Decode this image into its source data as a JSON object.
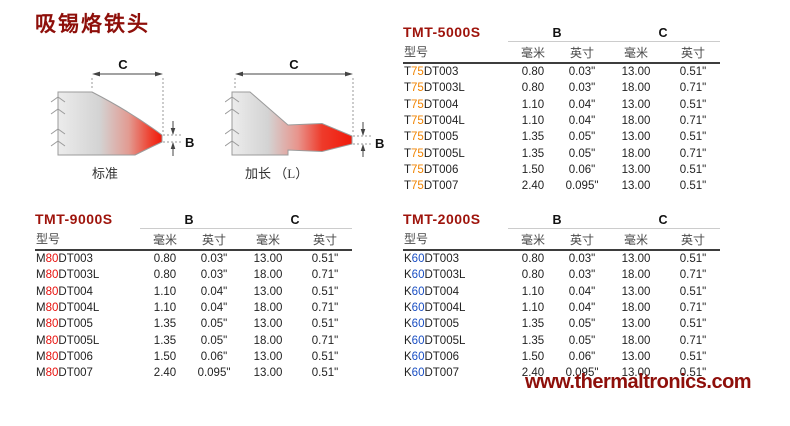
{
  "page": {
    "title": "吸锡烙铁头",
    "website": "www.thermaltronics.com"
  },
  "diagram": {
    "standard_label": "标准",
    "extended_label": "加长 （L）",
    "dim_b": "B",
    "dim_c": "C"
  },
  "table_headers": {
    "model": "型号",
    "mm": "毫米",
    "inch": "英寸",
    "b": "B",
    "c": "C"
  },
  "colors": {
    "heading_red": "#8e0f0a",
    "accent_t75": "#f08300",
    "accent_m80": "#e8100c",
    "accent_k60": "#1a4fc4"
  },
  "tables": [
    {
      "title": "TMT-5000S",
      "accent": "#f08300",
      "rows": [
        {
          "model": "T75DT003",
          "b_mm": "0.80",
          "b_in": "0.03\"",
          "c_mm": "13.00",
          "c_in": "0.51\""
        },
        {
          "model": "T75DT003L",
          "b_mm": "0.80",
          "b_in": "0.03\"",
          "c_mm": "18.00",
          "c_in": "0.71\""
        },
        {
          "model": "T75DT004",
          "b_mm": "1.10",
          "b_in": "0.04\"",
          "c_mm": "13.00",
          "c_in": "0.51\""
        },
        {
          "model": "T75DT004L",
          "b_mm": "1.10",
          "b_in": "0.04\"",
          "c_mm": "18.00",
          "c_in": "0.71\""
        },
        {
          "model": "T75DT005",
          "b_mm": "1.35",
          "b_in": "0.05\"",
          "c_mm": "13.00",
          "c_in": "0.51\""
        },
        {
          "model": "T75DT005L",
          "b_mm": "1.35",
          "b_in": "0.05\"",
          "c_mm": "18.00",
          "c_in": "0.71\""
        },
        {
          "model": "T75DT006",
          "b_mm": "1.50",
          "b_in": "0.06\"",
          "c_mm": "13.00",
          "c_in": "0.51\""
        },
        {
          "model": "T75DT007",
          "b_mm": "2.40",
          "b_in": "0.095\"",
          "c_mm": "13.00",
          "c_in": "0.51\""
        }
      ]
    },
    {
      "title": "TMT-9000S",
      "accent": "#e8100c",
      "rows": [
        {
          "model": "M80DT003",
          "b_mm": "0.80",
          "b_in": "0.03\"",
          "c_mm": "13.00",
          "c_in": "0.51\""
        },
        {
          "model": "M80DT003L",
          "b_mm": "0.80",
          "b_in": "0.03\"",
          "c_mm": "18.00",
          "c_in": "0.71\""
        },
        {
          "model": "M80DT004",
          "b_mm": "1.10",
          "b_in": "0.04\"",
          "c_mm": "13.00",
          "c_in": "0.51\""
        },
        {
          "model": "M80DT004L",
          "b_mm": "1.10",
          "b_in": "0.04\"",
          "c_mm": "18.00",
          "c_in": "0.71\""
        },
        {
          "model": "M80DT005",
          "b_mm": "1.35",
          "b_in": "0.05\"",
          "c_mm": "13.00",
          "c_in": "0.51\""
        },
        {
          "model": "M80DT005L",
          "b_mm": "1.35",
          "b_in": "0.05\"",
          "c_mm": "18.00",
          "c_in": "0.71\""
        },
        {
          "model": "M80DT006",
          "b_mm": "1.50",
          "b_in": "0.06\"",
          "c_mm": "13.00",
          "c_in": "0.51\""
        },
        {
          "model": "M80DT007",
          "b_mm": "2.40",
          "b_in": "0.095\"",
          "c_mm": "13.00",
          "c_in": "0.51\""
        }
      ]
    },
    {
      "title": "TMT-2000S",
      "accent": "#1a4fc4",
      "rows": [
        {
          "model": "K60DT003",
          "b_mm": "0.80",
          "b_in": "0.03\"",
          "c_mm": "13.00",
          "c_in": "0.51\""
        },
        {
          "model": "K60DT003L",
          "b_mm": "0.80",
          "b_in": "0.03\"",
          "c_mm": "18.00",
          "c_in": "0.71\""
        },
        {
          "model": "K60DT004",
          "b_mm": "1.10",
          "b_in": "0.04\"",
          "c_mm": "13.00",
          "c_in": "0.51\""
        },
        {
          "model": "K60DT004L",
          "b_mm": "1.10",
          "b_in": "0.04\"",
          "c_mm": "18.00",
          "c_in": "0.71\""
        },
        {
          "model": "K60DT005",
          "b_mm": "1.35",
          "b_in": "0.05\"",
          "c_mm": "13.00",
          "c_in": "0.51\""
        },
        {
          "model": "K60DT005L",
          "b_mm": "1.35",
          "b_in": "0.05\"",
          "c_mm": "18.00",
          "c_in": "0.71\""
        },
        {
          "model": "K60DT006",
          "b_mm": "1.50",
          "b_in": "0.06\"",
          "c_mm": "13.00",
          "c_in": "0.51\""
        },
        {
          "model": "K60DT007",
          "b_mm": "2.40",
          "b_in": "0.095\"",
          "c_mm": "13.00",
          "c_in": "0.51\""
        }
      ]
    }
  ]
}
